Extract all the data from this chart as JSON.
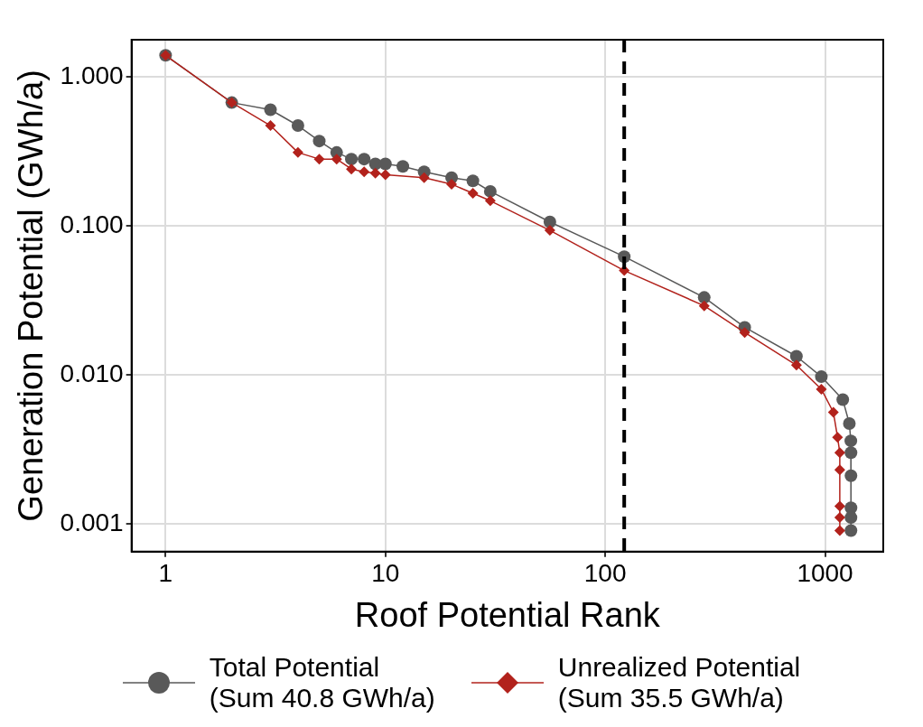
{
  "chart_data": {
    "type": "line",
    "xlabel": "Roof Potential Rank",
    "ylabel": "Generation Potential (GWh/a)",
    "log": "xy",
    "grid": true,
    "legend": "bottom",
    "xlim": [
      0.7,
      1840
    ],
    "xticks": [
      1,
      10,
      100,
      1000
    ],
    "ylim": [
      0.00065,
      1.77
    ],
    "yticks": [
      {
        "value": 1,
        "label": "1.000"
      },
      {
        "value": 0.1,
        "label": "0.100"
      },
      {
        "value": 0.01,
        "label": "0.010"
      },
      {
        "value": 0.001,
        "label": "0.001"
      }
    ],
    "ref_lines": [
      {
        "axis": "x",
        "value": 122,
        "label": null,
        "color": "#000000",
        "line_style": "dashed"
      }
    ],
    "series": [
      {
        "name": "Total Potential\n(Sum 40.8 GWh/a)",
        "color": "#595959",
        "marker": "circle",
        "x": [
          1,
          2,
          3,
          4,
          5,
          6,
          7,
          8,
          9,
          10,
          12,
          15,
          20,
          25,
          30,
          56,
          122,
          282,
          431,
          741,
          962,
          1204,
          1290,
          1310,
          1312,
          1312,
          1312,
          1312,
          1312
        ],
        "values": [
          1.39,
          0.67,
          0.6,
          0.47,
          0.37,
          0.31,
          0.28,
          0.28,
          0.26,
          0.26,
          0.25,
          0.23,
          0.21,
          0.2,
          0.17,
          0.106,
          0.062,
          0.033,
          0.0208,
          0.0133,
          0.0097,
          0.0068,
          0.0047,
          0.0036,
          0.003,
          0.0021,
          0.00128,
          0.0011,
          0.0009
        ]
      },
      {
        "name": "Unrealized Potential\n(Sum 35.5 GWh/a)",
        "color": "#b2221c",
        "marker": "diamond",
        "x": [
          1,
          2,
          3,
          4,
          5,
          6,
          7,
          8,
          9,
          10,
          15,
          20,
          25,
          30,
          56,
          122,
          282,
          431,
          741,
          962,
          1091,
          1140,
          1167,
          1167,
          1167,
          1167,
          1167
        ],
        "values": [
          1.39,
          0.67,
          0.47,
          0.31,
          0.28,
          0.28,
          0.24,
          0.23,
          0.225,
          0.22,
          0.21,
          0.19,
          0.165,
          0.147,
          0.093,
          0.05,
          0.029,
          0.0192,
          0.0116,
          0.008,
          0.0056,
          0.0038,
          0.003,
          0.0023,
          0.00131,
          0.0011,
          0.0009
        ]
      }
    ]
  }
}
